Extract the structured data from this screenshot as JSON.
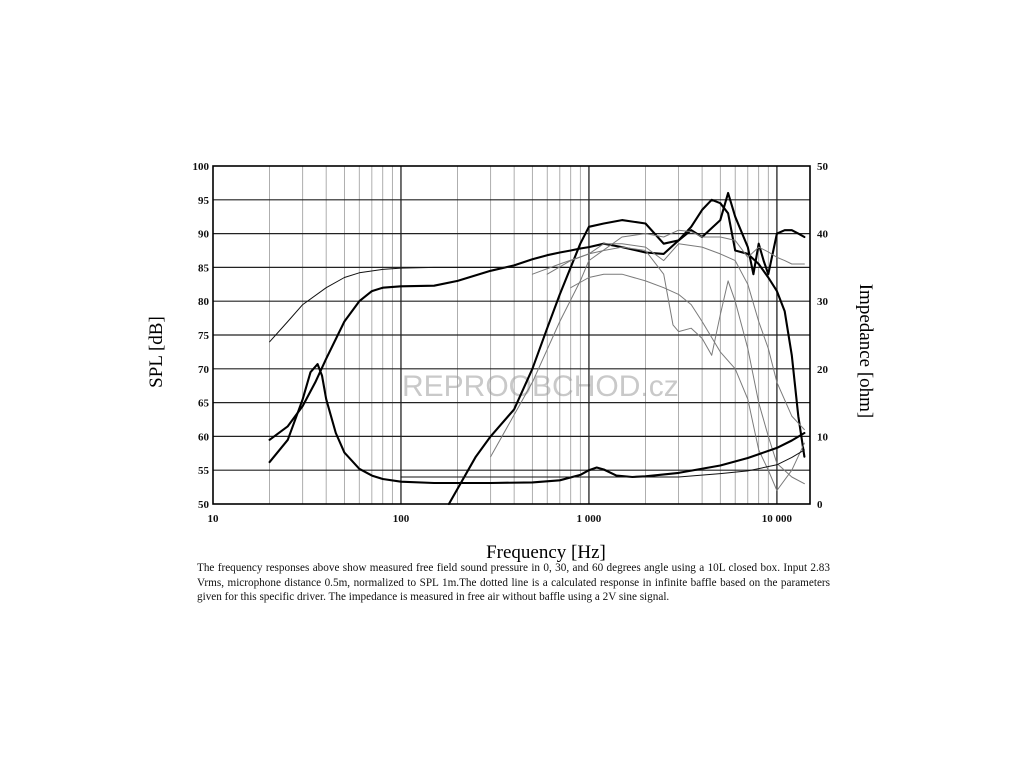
{
  "chart_data": {
    "type": "line",
    "xlabel": "Frequency [Hz]",
    "ylabel_left": "SPL [dB]",
    "ylabel_right": "Impedance [ohm]",
    "x_scale": "log",
    "xlim": [
      10,
      15000
    ],
    "ylim_left": [
      50,
      100
    ],
    "ylim_right": [
      0,
      50
    ],
    "grid": true,
    "x_ticks": [
      10,
      100,
      1000,
      10000
    ],
    "x_tick_labels": [
      "10",
      "100",
      "1 000",
      "10 000"
    ],
    "y_ticks_left": [
      50,
      55,
      60,
      65,
      70,
      75,
      80,
      85,
      90,
      95,
      100
    ],
    "y_ticks_right": [
      0,
      10,
      20,
      30,
      40,
      50
    ],
    "series": [
      {
        "axis": "left",
        "style": "bold",
        "x": [
          20,
          25,
          30,
          35,
          40,
          50,
          60,
          70,
          80,
          100,
          150,
          200,
          300,
          400,
          500,
          600,
          700,
          800,
          900,
          1000,
          1200,
          1500,
          2000,
          2500,
          3000,
          3500,
          4000,
          4500,
          5000,
          5500,
          6000,
          7000,
          8000,
          9000,
          10000,
          11000,
          12000,
          13000,
          14000
        ],
        "y": [
          59.5,
          61.5,
          64.5,
          68,
          71.5,
          77,
          80,
          81.5,
          82,
          82.2,
          82.3,
          83,
          84.5,
          85.3,
          86.2,
          86.8,
          87.2,
          87.5,
          87.8,
          88,
          88.5,
          88,
          87.2,
          87,
          89,
          91,
          93.5,
          95,
          94.5,
          93,
          87.5,
          87,
          85.5,
          83.5,
          81.5,
          78.5,
          72,
          63,
          57
        ]
      },
      {
        "axis": "left",
        "style": "bold",
        "x": [
          180,
          250,
          300,
          400,
          500,
          600,
          700,
          800,
          900,
          1000,
          1200,
          1500,
          2000,
          2500,
          3000,
          3500,
          4000,
          5000,
          5500,
          6000,
          7000,
          7500,
          8000,
          8500,
          9000,
          10000,
          11000,
          12000,
          13000,
          14000
        ],
        "y": [
          50,
          57,
          60,
          64,
          70,
          76,
          81,
          85,
          88.5,
          91,
          91.5,
          92,
          91.5,
          88.5,
          89,
          90.5,
          89.5,
          92,
          96,
          92.5,
          88,
          84,
          88.5,
          86,
          84,
          90,
          90.5,
          90.5,
          90,
          89.5
        ]
      },
      {
        "axis": "left",
        "style": "thin",
        "x": [
          20,
          25,
          30,
          40,
          50,
          60,
          80,
          100,
          150,
          200,
          300,
          500,
          700,
          1000
        ],
        "y": [
          74,
          77,
          79.5,
          82,
          83.5,
          84.2,
          84.7,
          84.9,
          85,
          85,
          85,
          85,
          85,
          85
        ]
      },
      {
        "axis": "left",
        "style": "gray",
        "x": [
          500,
          700,
          1000,
          1200,
          1500,
          2000,
          2500,
          3000,
          4000,
          5000,
          6000,
          7000,
          8000,
          9000,
          10000,
          12000,
          14000
        ],
        "y": [
          84,
          85.5,
          87,
          88.5,
          88.5,
          88,
          86,
          88.5,
          88,
          87,
          86,
          82.5,
          77,
          73,
          68,
          63,
          61
        ]
      },
      {
        "axis": "left",
        "style": "gray",
        "x": [
          600,
          800,
          1000,
          1200,
          1500,
          2000,
          2500,
          2800,
          3000,
          3500,
          4000,
          4500,
          5000,
          5500,
          6000,
          7000,
          8000,
          9000,
          10000,
          12000,
          14000
        ],
        "y": [
          84,
          86,
          87,
          87.5,
          88,
          87.5,
          84,
          76.5,
          75.5,
          76,
          74.5,
          72,
          78,
          83,
          80,
          73,
          65,
          60,
          56,
          54,
          53
        ]
      },
      {
        "axis": "left",
        "style": "gray",
        "x": [
          800,
          1000,
          1200,
          1500,
          2000,
          2500,
          3000,
          3500,
          4000,
          5000,
          6000,
          7000,
          8000,
          9000,
          10000,
          12000,
          14000
        ],
        "y": [
          82,
          83.5,
          84,
          84,
          83,
          82,
          81,
          79.5,
          77,
          72.5,
          70,
          65.5,
          58,
          55,
          52,
          55,
          59
        ]
      },
      {
        "axis": "left",
        "style": "gray",
        "x": [
          300,
          500,
          700,
          900,
          1000,
          1500,
          2000,
          2500,
          3000,
          3500,
          4000,
          5000,
          6000,
          7000,
          8000,
          9000,
          10000,
          11000,
          12000,
          13000,
          14000
        ],
        "y": [
          57,
          68,
          77,
          83,
          86,
          89.5,
          90,
          89.5,
          90.5,
          90.3,
          89.5,
          89.5,
          89,
          86.5,
          88,
          87.3,
          86.5,
          86,
          85.5,
          85.5,
          85.5
        ]
      },
      {
        "axis": "right",
        "style": "bold",
        "x": [
          20,
          25,
          30,
          33,
          36,
          38,
          40,
          45,
          50,
          60,
          70,
          80,
          100,
          150,
          200,
          300,
          500,
          700,
          900,
          1000,
          1100,
          1200,
          1400,
          1700,
          2000,
          3000,
          5000,
          7000,
          10000,
          12000,
          14000
        ],
        "y": [
          6.2,
          9.5,
          15.5,
          19.5,
          20.7,
          19,
          15.5,
          10.5,
          7.6,
          5.2,
          4.2,
          3.7,
          3.3,
          3.1,
          3.1,
          3.1,
          3.2,
          3.5,
          4.3,
          5,
          5.4,
          5.1,
          4.2,
          4,
          4.1,
          4.6,
          5.7,
          6.8,
          8.3,
          9.4,
          10.5
        ]
      },
      {
        "axis": "right",
        "style": "thin",
        "x": [
          100,
          200,
          500,
          1000,
          2000,
          3000,
          5000,
          7000,
          10000,
          12000,
          14000
        ],
        "y": [
          4,
          4,
          4,
          4,
          4,
          4,
          4.5,
          4.9,
          5.8,
          6.9,
          8
        ]
      }
    ]
  },
  "watermark": "REPROOBCHOD.cz",
  "caption": "The frequency responses above show measured free field sound pressure in 0, 30, and 60 degrees angle using a 10L closed box. Input 2.83 Vrms, microphone distance 0.5m, normalized to SPL 1m.The dotted line is a calculated response in infinite baffle based on the parameters given for this specific driver. The impedance is measured in free air without baffle using a 2V sine signal."
}
